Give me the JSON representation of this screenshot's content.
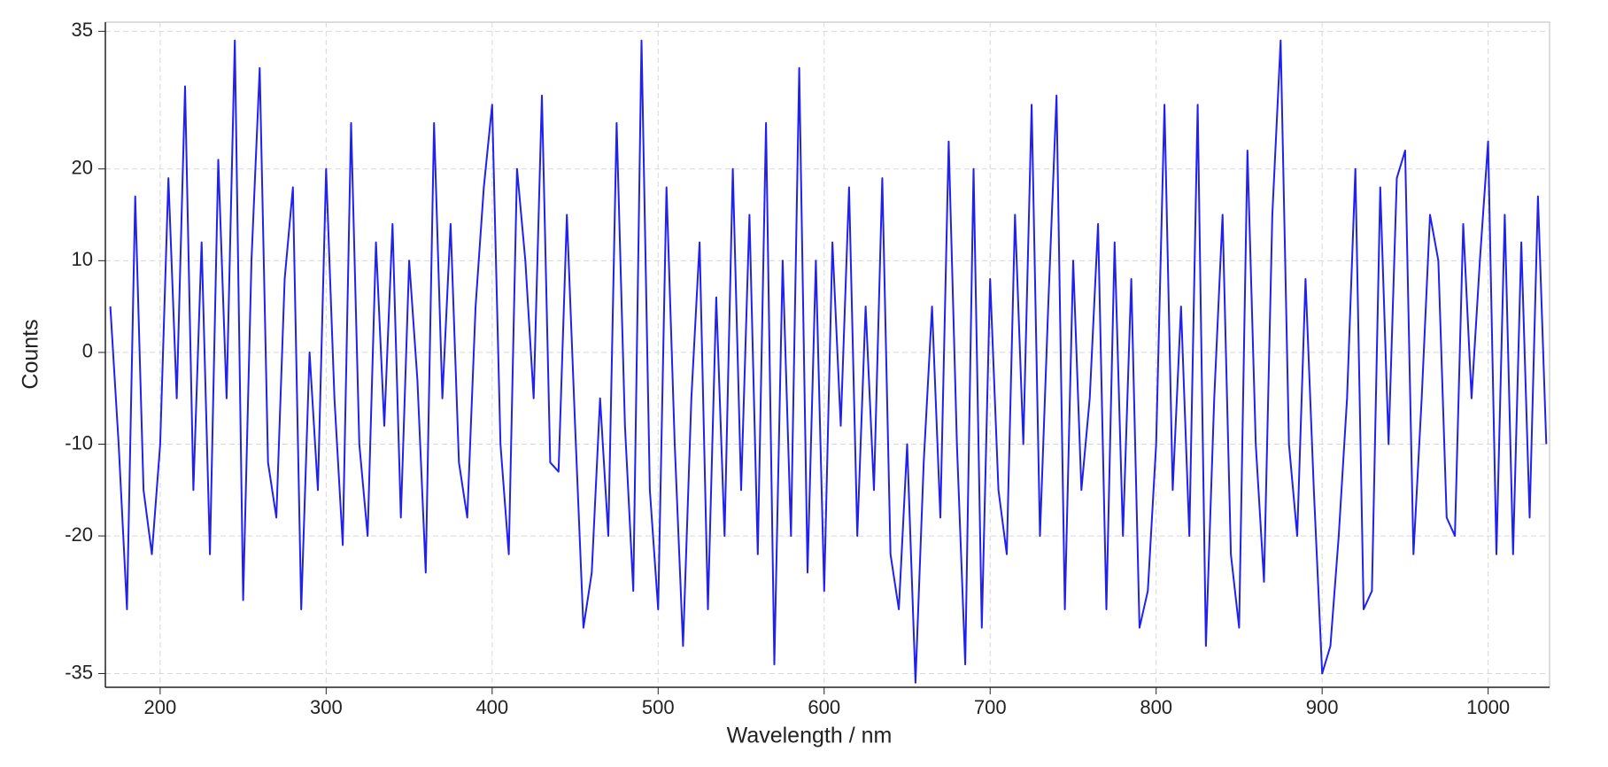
{
  "chart_data": {
    "type": "line",
    "xlabel": "Wavelength / nm",
    "ylabel": "Counts",
    "color": "#2020f0",
    "xlim": [
      167,
      1037
    ],
    "xticks": [
      200,
      300,
      400,
      500,
      600,
      700,
      800,
      900,
      1000
    ],
    "ylim": [
      -36.5,
      36
    ],
    "yticks": [
      -35,
      -20,
      -10,
      0,
      10,
      20,
      35
    ],
    "grid": true,
    "x": [
      170,
      175,
      180,
      185,
      190,
      195,
      200,
      205,
      210,
      215,
      220,
      225,
      230,
      235,
      240,
      245,
      250,
      255,
      260,
      265,
      270,
      275,
      280,
      285,
      290,
      295,
      300,
      305,
      310,
      315,
      320,
      325,
      330,
      335,
      340,
      345,
      350,
      355,
      360,
      365,
      370,
      375,
      380,
      385,
      390,
      395,
      400,
      405,
      410,
      415,
      420,
      425,
      430,
      435,
      440,
      445,
      450,
      455,
      460,
      465,
      470,
      475,
      480,
      485,
      490,
      495,
      500,
      505,
      510,
      515,
      520,
      525,
      530,
      535,
      540,
      545,
      550,
      555,
      560,
      565,
      570,
      575,
      580,
      585,
      590,
      595,
      600,
      605,
      610,
      615,
      620,
      625,
      630,
      635,
      640,
      645,
      650,
      655,
      660,
      665,
      670,
      675,
      680,
      685,
      690,
      695,
      700,
      705,
      710,
      715,
      720,
      725,
      730,
      735,
      740,
      745,
      750,
      755,
      760,
      765,
      770,
      775,
      780,
      785,
      790,
      795,
      800,
      805,
      810,
      815,
      820,
      825,
      830,
      835,
      840,
      845,
      850,
      855,
      860,
      865,
      870,
      875,
      880,
      885,
      890,
      895,
      900,
      905,
      910,
      915,
      920,
      925,
      930,
      935,
      940,
      945,
      950,
      955,
      960,
      965,
      970,
      975,
      980,
      985,
      990,
      995,
      1000,
      1005,
      1010,
      1015,
      1020,
      1025,
      1030,
      1035
    ],
    "values": [
      5,
      -10,
      -28,
      17,
      -15,
      -22,
      -10,
      19,
      -5,
      29,
      -15,
      12,
      -22,
      21,
      -5,
      34,
      -27,
      10,
      31,
      -12,
      -18,
      8,
      18,
      -28,
      0,
      -15,
      20,
      -5,
      -21,
      25,
      -10,
      -20,
      12,
      -8,
      14,
      -18,
      10,
      -3,
      -24,
      25,
      -5,
      14,
      -12,
      -18,
      5,
      18,
      27,
      -10,
      -22,
      20,
      10,
      -5,
      28,
      -12,
      -13,
      15,
      -8,
      -30,
      -24,
      -5,
      -20,
      25,
      -8,
      -26,
      34,
      -15,
      -28,
      18,
      -10,
      -32,
      -5,
      12,
      -28,
      6,
      -20,
      20,
      -15,
      15,
      -22,
      25,
      -34,
      10,
      -20,
      31,
      -24,
      10,
      -26,
      12,
      -8,
      18,
      -20,
      5,
      -15,
      19,
      -22,
      -28,
      -10,
      -36,
      -12,
      5,
      -18,
      23,
      -10,
      -34,
      20,
      -30,
      8,
      -15,
      -22,
      15,
      -10,
      27,
      -20,
      5,
      28,
      -28,
      10,
      -15,
      -5,
      14,
      -28,
      12,
      -20,
      8,
      -30,
      -26,
      -10,
      27,
      -15,
      5,
      -20,
      27,
      -32,
      -5,
      15,
      -22,
      -30,
      22,
      -10,
      -25,
      15,
      34,
      -10,
      -20,
      8,
      -15,
      -35,
      -32,
      -20,
      -5,
      20,
      -28,
      -26,
      18,
      -10,
      19,
      22,
      -22,
      -5,
      15,
      10,
      -18,
      -20,
      14,
      -5,
      10,
      23,
      -22,
      15,
      -22,
      12,
      -18,
      17,
      -10
    ]
  }
}
